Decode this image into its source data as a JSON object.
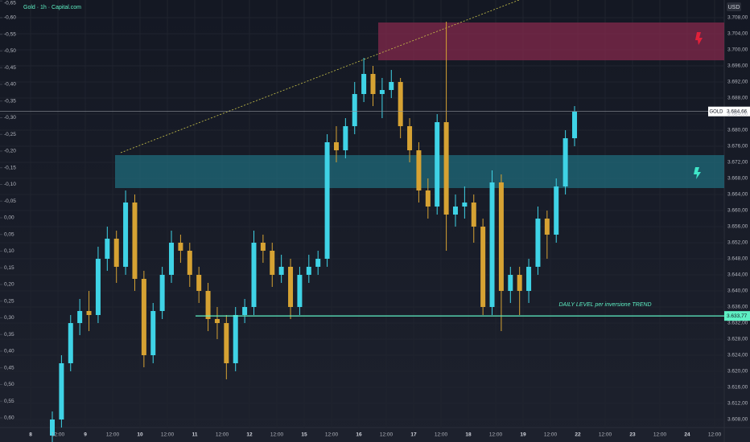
{
  "chart_data": {
    "type": "candlestick",
    "title": "Gold · 1h · Capital.com",
    "currency": "USD",
    "x_labels": [
      "8",
      "12:00",
      "9",
      "12:00",
      "10",
      "12:00",
      "11",
      "12:00",
      "12",
      "12:00",
      "15",
      "12:00",
      "16",
      "12:00",
      "17",
      "12:00",
      "18",
      "12:00",
      "19",
      "12:00",
      "22",
      "12:00",
      "23",
      "12:00",
      "24",
      "12:00"
    ],
    "open": [
      3604,
      3608,
      3622,
      3632,
      3635,
      3634,
      3648,
      3653,
      3646,
      3662,
      3643,
      3624,
      3635,
      3644,
      3652,
      3650,
      3644,
      3640,
      3633,
      3632,
      3622,
      3634,
      3636,
      3652,
      3650,
      3644,
      3646,
      3636,
      3644,
      3646,
      3648,
      3677,
      3675,
      3681,
      3689,
      3694,
      3689,
      3690,
      3692,
      3681,
      3675,
      3665,
      3661,
      3682,
      3659,
      3661,
      3662,
      3656,
      3636,
      3667,
      3640,
      3644,
      3640,
      3646,
      3658,
      3654,
      3666,
      3678
    ],
    "high": [
      3610,
      3624,
      3634,
      3638,
      3640,
      3651,
      3656,
      3655,
      3665,
      3664,
      3645,
      3637,
      3646,
      3655,
      3654,
      3652,
      3646,
      3642,
      3636,
      3634,
      3636,
      3638,
      3655,
      3654,
      3652,
      3649,
      3648,
      3646,
      3649,
      3650,
      3679,
      3681,
      3683,
      3692,
      3698,
      3696,
      3693,
      3695,
      3693,
      3683,
      3677,
      3668,
      3684,
      3707,
      3664,
      3666,
      3664,
      3658,
      3670,
      3669,
      3646,
      3646,
      3648,
      3661,
      3660,
      3668,
      3680,
      3686
    ],
    "low": [
      3602,
      3606,
      3620,
      3629,
      3630,
      3632,
      3645,
      3642,
      3644,
      3640,
      3621,
      3622,
      3633,
      3642,
      3647,
      3641,
      3637,
      3630,
      3628,
      3618,
      3620,
      3632,
      3634,
      3647,
      3641,
      3642,
      3633,
      3634,
      3642,
      3644,
      3646,
      3672,
      3673,
      3679,
      3687,
      3686,
      3683,
      3688,
      3678,
      3672,
      3662,
      3658,
      3659,
      3650,
      3656,
      3658,
      3652,
      3634,
      3634,
      3630,
      3637,
      3634,
      3637,
      3644,
      3648,
      3652,
      3664,
      3676
    ],
    "close": [
      3608,
      3622,
      3632,
      3635,
      3634,
      3648,
      3653,
      3646,
      3662,
      3643,
      3624,
      3635,
      3644,
      3652,
      3650,
      3644,
      3640,
      3633,
      3632,
      3622,
      3634,
      3636,
      3652,
      3650,
      3644,
      3646,
      3636,
      3644,
      3646,
      3648,
      3677,
      3675,
      3681,
      3689,
      3694,
      3689,
      3690,
      3692,
      3681,
      3675,
      3665,
      3661,
      3682,
      3659,
      3661,
      3662,
      3656,
      3636,
      3667,
      3640,
      3644,
      3640,
      3646,
      3658,
      3654,
      3666,
      3678,
      3684.66
    ],
    "colors": {
      "up": "#3fd3e6",
      "down": "#d6a233"
    },
    "ylim": [
      3606,
      3712.4
    ],
    "yticks": [
      {
        "value": 3708,
        "label": "3.708,00"
      },
      {
        "value": 3704,
        "label": "3.704,00"
      },
      {
        "value": 3700,
        "label": "3.700,00"
      },
      {
        "value": 3696,
        "label": "3.696,00"
      },
      {
        "value": 3692,
        "label": "3.692,00"
      },
      {
        "value": 3688,
        "label": "3.688,00"
      },
      {
        "value": 3684,
        "label": "3.684,00"
      },
      {
        "value": 3680,
        "label": "3.680,00"
      },
      {
        "value": 3676,
        "label": "3.676,00"
      },
      {
        "value": 3672,
        "label": "3.672,00"
      },
      {
        "value": 3668,
        "label": "3.668,00"
      },
      {
        "value": 3664,
        "label": "3.664,00"
      },
      {
        "value": 3660,
        "label": "3.660,00"
      },
      {
        "value": 3656,
        "label": "3.656,00"
      },
      {
        "value": 3652,
        "label": "3.652,00"
      },
      {
        "value": 3648,
        "label": "3.648,00"
      },
      {
        "value": 3644,
        "label": "3.644,00"
      },
      {
        "value": 3640,
        "label": "3.640,00"
      },
      {
        "value": 3636,
        "label": "3.636,00"
      },
      {
        "value": 3632,
        "label": "3.632,00"
      },
      {
        "value": 3628,
        "label": "3.628,00"
      },
      {
        "value": 3624,
        "label": "3.624,00"
      },
      {
        "value": 3620,
        "label": "3.620,00"
      },
      {
        "value": 3616,
        "label": "3.616,00"
      },
      {
        "value": 3612,
        "label": "3.612,00"
      },
      {
        "value": 3608,
        "label": "3.608,00"
      }
    ],
    "y2lim": [
      -0.653,
      0.629
    ],
    "y2ticks": [
      {
        "value": -0.65,
        "label": "-0,65"
      },
      {
        "value": -0.6,
        "label": "-0,60"
      },
      {
        "value": -0.55,
        "label": "-0,55"
      },
      {
        "value": -0.5,
        "label": "-0,50"
      },
      {
        "value": -0.45,
        "label": "-0,45"
      },
      {
        "value": -0.4,
        "label": "-0,40"
      },
      {
        "value": -0.35,
        "label": "-0,35"
      },
      {
        "value": -0.3,
        "label": "-0,30"
      },
      {
        "value": -0.25,
        "label": "-0,25"
      },
      {
        "value": -0.2,
        "label": "-0,20"
      },
      {
        "value": -0.15,
        "label": "-0,15"
      },
      {
        "value": -0.1,
        "label": "-0,10"
      },
      {
        "value": -0.05,
        "label": "-0,05"
      },
      {
        "value": 0,
        "label": "0,00"
      },
      {
        "value": 0.05,
        "label": "0,05"
      },
      {
        "value": 0.1,
        "label": "0,10"
      },
      {
        "value": 0.15,
        "label": "0,15"
      },
      {
        "value": 0.2,
        "label": "0,20"
      },
      {
        "value": 0.25,
        "label": "0,25"
      },
      {
        "value": 0.3,
        "label": "0,30"
      },
      {
        "value": 0.35,
        "label": "0,35"
      },
      {
        "value": 0.4,
        "label": "0,40"
      },
      {
        "value": 0.45,
        "label": "0,45"
      },
      {
        "value": 0.5,
        "label": "0,50"
      },
      {
        "value": 0.55,
        "label": "0,55"
      },
      {
        "value": 0.6,
        "label": "0,60"
      }
    ],
    "grid": true,
    "zones": [
      {
        "top": 3706.8,
        "bottom": 3697.4,
        "color": "#8a2a4e"
      },
      {
        "top": 3673.8,
        "bottom": 3665.6,
        "color": "#1f6f80"
      }
    ],
    "levels": [
      {
        "value": 3633.77,
        "label": "3.633,77",
        "text": "DAILY LEVEL per inversione TREND",
        "color": "#5ef0c4"
      },
      {
        "value": 3684.66,
        "label": "3.684,66",
        "symbol": "GOLD",
        "color": "#8a8f99"
      }
    ],
    "trendline": [
      3674.4,
      3712.4
    ]
  }
}
